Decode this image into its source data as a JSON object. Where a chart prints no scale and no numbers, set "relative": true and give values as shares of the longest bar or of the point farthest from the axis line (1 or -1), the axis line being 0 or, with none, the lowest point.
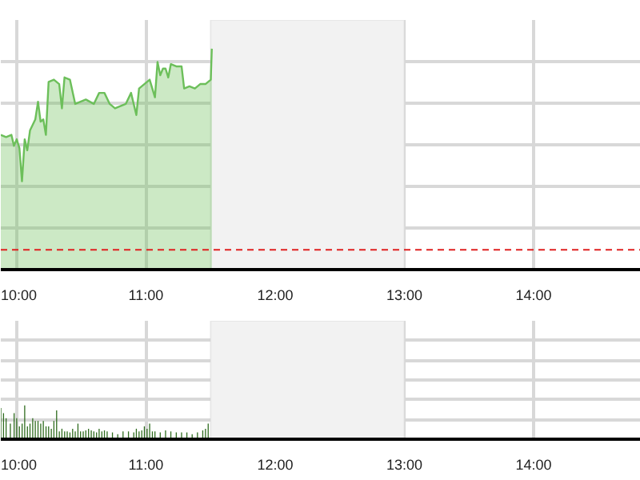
{
  "chart_data": [
    {
      "type": "area",
      "relative": true,
      "grid": true,
      "xlim": [
        9.877,
        14.83
      ],
      "xticks": [
        {
          "value": 10,
          "label": "10:00"
        },
        {
          "value": 11,
          "label": "11:00"
        },
        {
          "value": 12,
          "label": "12:00"
        },
        {
          "value": 13,
          "label": "13:00"
        },
        {
          "value": 14,
          "label": "14:00"
        }
      ],
      "bands": [
        {
          "axis": "x",
          "from": 11.5,
          "to": 13.0,
          "color": "#f2f2f2"
        }
      ],
      "ref_lines": [
        {
          "axis": "y",
          "value": 0.09,
          "color": "#e02020",
          "line_style": "dashed"
        }
      ],
      "series": [
        {
          "color": "#6cbf5a",
          "x": [
            9.877,
            9.918,
            9.959,
            9.979,
            10.0,
            10.021,
            10.041,
            10.062,
            10.082,
            10.103,
            10.144,
            10.165,
            10.185,
            10.206,
            10.226,
            10.247,
            10.288,
            10.329,
            10.35,
            10.37,
            10.412,
            10.453,
            10.494,
            10.535,
            10.597,
            10.638,
            10.679,
            10.72,
            10.761,
            10.844,
            10.885,
            10.926,
            10.947,
            10.988,
            11.029,
            11.07,
            11.09,
            11.111,
            11.132,
            11.152,
            11.173,
            11.193,
            11.235,
            11.276,
            11.296,
            11.337,
            11.379,
            11.42,
            11.461,
            11.502,
            11.51
          ],
          "values": [
            0.61,
            0.6,
            0.61,
            0.56,
            0.59,
            0.55,
            0.4,
            0.59,
            0.54,
            0.63,
            0.68,
            0.76,
            0.67,
            0.68,
            0.61,
            0.85,
            0.86,
            0.84,
            0.73,
            0.87,
            0.86,
            0.75,
            0.76,
            0.77,
            0.75,
            0.8,
            0.8,
            0.75,
            0.73,
            0.75,
            0.8,
            0.7,
            0.82,
            0.84,
            0.86,
            0.78,
            0.94,
            0.88,
            0.91,
            0.91,
            0.87,
            0.93,
            0.92,
            0.92,
            0.82,
            0.83,
            0.82,
            0.84,
            0.84,
            0.86,
            1.0
          ]
        }
      ]
    },
    {
      "type": "bar",
      "relative": true,
      "grid": true,
      "xlim": [
        9.877,
        14.83
      ],
      "xticks": [
        {
          "value": 10,
          "label": "10:00"
        },
        {
          "value": 11,
          "label": "11:00"
        },
        {
          "value": 12,
          "label": "12:00"
        },
        {
          "value": 13,
          "label": "13:00"
        },
        {
          "value": 14,
          "label": "14:00"
        }
      ],
      "bands": [
        {
          "axis": "x",
          "from": 11.5,
          "to": 13.0,
          "color": "#f2f2f2"
        }
      ],
      "series": [
        {
          "color": "#2e6b1e",
          "x": [
            9.877,
            9.898,
            9.918,
            9.951,
            9.98,
            10.0,
            10.021,
            10.042,
            10.062,
            10.083,
            10.103,
            10.124,
            10.144,
            10.165,
            10.186,
            10.206,
            10.227,
            10.247,
            10.268,
            10.288,
            10.309,
            10.33,
            10.35,
            10.371,
            10.391,
            10.412,
            10.433,
            10.453,
            10.474,
            10.494,
            10.515,
            10.535,
            10.556,
            10.577,
            10.597,
            10.618,
            10.638,
            10.659,
            10.679,
            10.7,
            10.741,
            10.782,
            10.823,
            10.865,
            10.906,
            10.926,
            10.947,
            10.968,
            10.988,
            11.009,
            11.029,
            11.05,
            11.07,
            11.111,
            11.152,
            11.193,
            11.235,
            11.276,
            11.317,
            11.358,
            11.399,
            11.44,
            11.461,
            11.482
          ],
          "values": [
            0.92,
            0.77,
            0.62,
            0.46,
            0.77,
            0.62,
            0.38,
            0.46,
            1.0,
            0.38,
            0.46,
            0.62,
            0.54,
            0.54,
            0.46,
            0.54,
            0.38,
            0.38,
            0.31,
            0.54,
            0.85,
            0.23,
            0.31,
            0.23,
            0.23,
            0.2,
            0.31,
            0.23,
            0.46,
            0.23,
            0.23,
            0.26,
            0.31,
            0.26,
            0.23,
            0.2,
            0.31,
            0.23,
            0.26,
            0.23,
            0.2,
            0.15,
            0.23,
            0.23,
            0.2,
            0.31,
            0.23,
            0.26,
            0.38,
            0.31,
            0.46,
            0.23,
            0.23,
            0.2,
            0.26,
            0.23,
            0.2,
            0.2,
            0.2,
            0.15,
            0.2,
            0.26,
            0.31,
            0.46
          ]
        }
      ]
    }
  ]
}
